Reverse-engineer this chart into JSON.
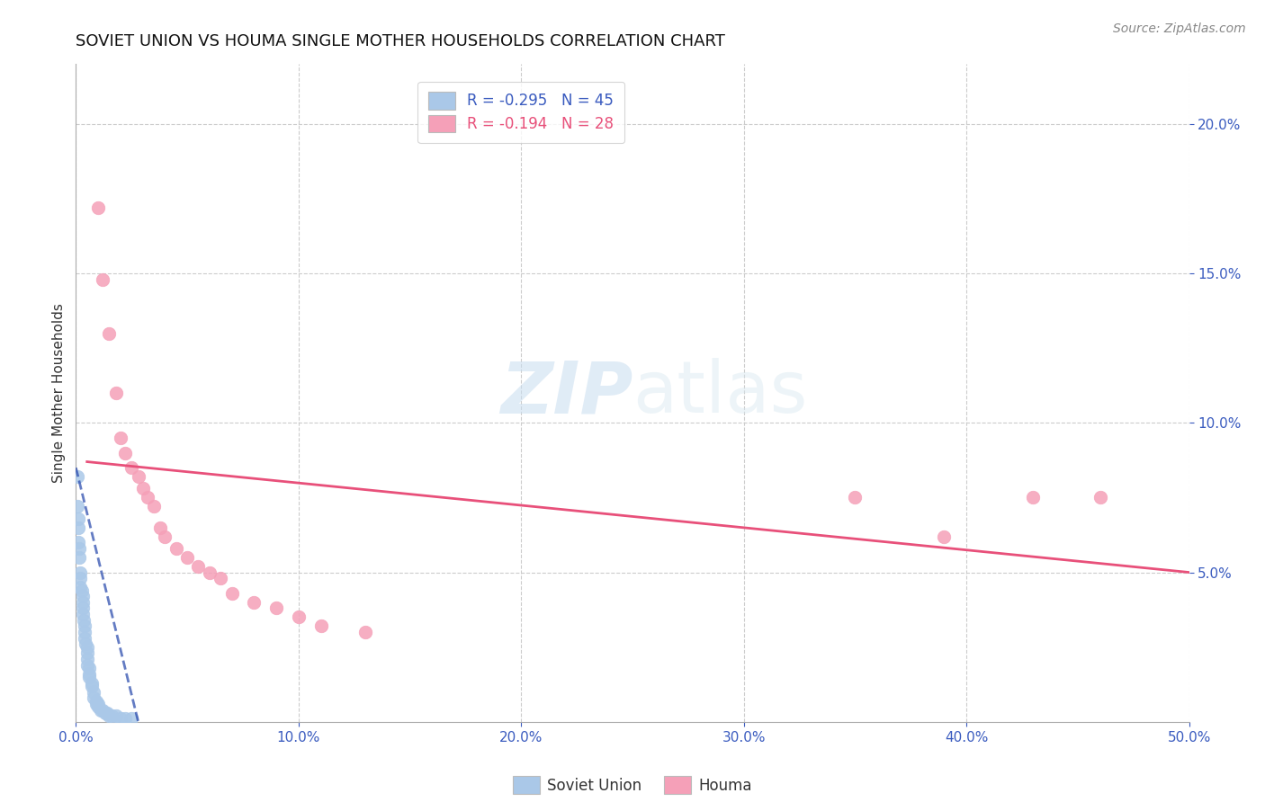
{
  "title": "SOVIET UNION VS HOUMA SINGLE MOTHER HOUSEHOLDS CORRELATION CHART",
  "source": "Source: ZipAtlas.com",
  "ylabel": "Single Mother Households",
  "watermark_part1": "ZIP",
  "watermark_part2": "atlas",
  "xlim": [
    0.0,
    0.5
  ],
  "ylim": [
    0.0,
    0.22
  ],
  "yticks": [
    0.05,
    0.1,
    0.15,
    0.2
  ],
  "ytick_labels": [
    "5.0%",
    "10.0%",
    "15.0%",
    "20.0%"
  ],
  "xticks": [
    0.0,
    0.1,
    0.2,
    0.3,
    0.4,
    0.5
  ],
  "xtick_labels": [
    "0.0%",
    "10.0%",
    "20.0%",
    "30.0%",
    "40.0%",
    "50.0%"
  ],
  "soviet_color": "#aac8e8",
  "houma_color": "#f5a0b8",
  "soviet_line_color": "#2244aa",
  "houma_line_color": "#e8507a",
  "soviet_R": -0.295,
  "soviet_N": 45,
  "houma_R": -0.194,
  "houma_N": 28,
  "soviet_x": [
    0.0005,
    0.0008,
    0.001,
    0.001,
    0.0012,
    0.0015,
    0.0015,
    0.002,
    0.002,
    0.002,
    0.0025,
    0.003,
    0.003,
    0.003,
    0.003,
    0.0035,
    0.004,
    0.004,
    0.004,
    0.0045,
    0.005,
    0.005,
    0.005,
    0.005,
    0.006,
    0.006,
    0.006,
    0.007,
    0.007,
    0.008,
    0.008,
    0.009,
    0.009,
    0.01,
    0.01,
    0.011,
    0.012,
    0.013,
    0.014,
    0.015,
    0.016,
    0.018,
    0.02,
    0.022,
    0.025
  ],
  "soviet_y": [
    0.082,
    0.072,
    0.068,
    0.065,
    0.06,
    0.058,
    0.055,
    0.05,
    0.048,
    0.045,
    0.044,
    0.042,
    0.04,
    0.038,
    0.036,
    0.034,
    0.032,
    0.03,
    0.028,
    0.026,
    0.025,
    0.023,
    0.021,
    0.019,
    0.018,
    0.016,
    0.015,
    0.013,
    0.012,
    0.01,
    0.008,
    0.007,
    0.006,
    0.006,
    0.005,
    0.004,
    0.004,
    0.003,
    0.003,
    0.002,
    0.002,
    0.002,
    0.001,
    0.001,
    0.001
  ],
  "houma_x": [
    0.01,
    0.012,
    0.015,
    0.018,
    0.02,
    0.022,
    0.025,
    0.028,
    0.03,
    0.032,
    0.035,
    0.038,
    0.04,
    0.045,
    0.05,
    0.055,
    0.06,
    0.065,
    0.07,
    0.08,
    0.09,
    0.1,
    0.11,
    0.13,
    0.35,
    0.39,
    0.43,
    0.46
  ],
  "houma_y": [
    0.172,
    0.148,
    0.13,
    0.11,
    0.095,
    0.09,
    0.085,
    0.082,
    0.078,
    0.075,
    0.072,
    0.065,
    0.062,
    0.058,
    0.055,
    0.052,
    0.05,
    0.048,
    0.043,
    0.04,
    0.038,
    0.035,
    0.032,
    0.03,
    0.075,
    0.062,
    0.075,
    0.075
  ],
  "soviet_line_x": [
    0.0,
    0.028
  ],
  "soviet_line_y_start": 0.085,
  "soviet_line_y_end": 0.0,
  "houma_line_x": [
    0.005,
    0.5
  ],
  "houma_line_y_start": 0.087,
  "houma_line_y_end": 0.05,
  "background_color": "#ffffff",
  "grid_color": "#cccccc",
  "tick_color": "#3a5bbf",
  "title_color": "#111111",
  "title_fontsize": 13,
  "axis_label_color": "#333333",
  "legend_label_color_soviet": "#3a5bbf",
  "legend_label_color_houma": "#e8507a"
}
